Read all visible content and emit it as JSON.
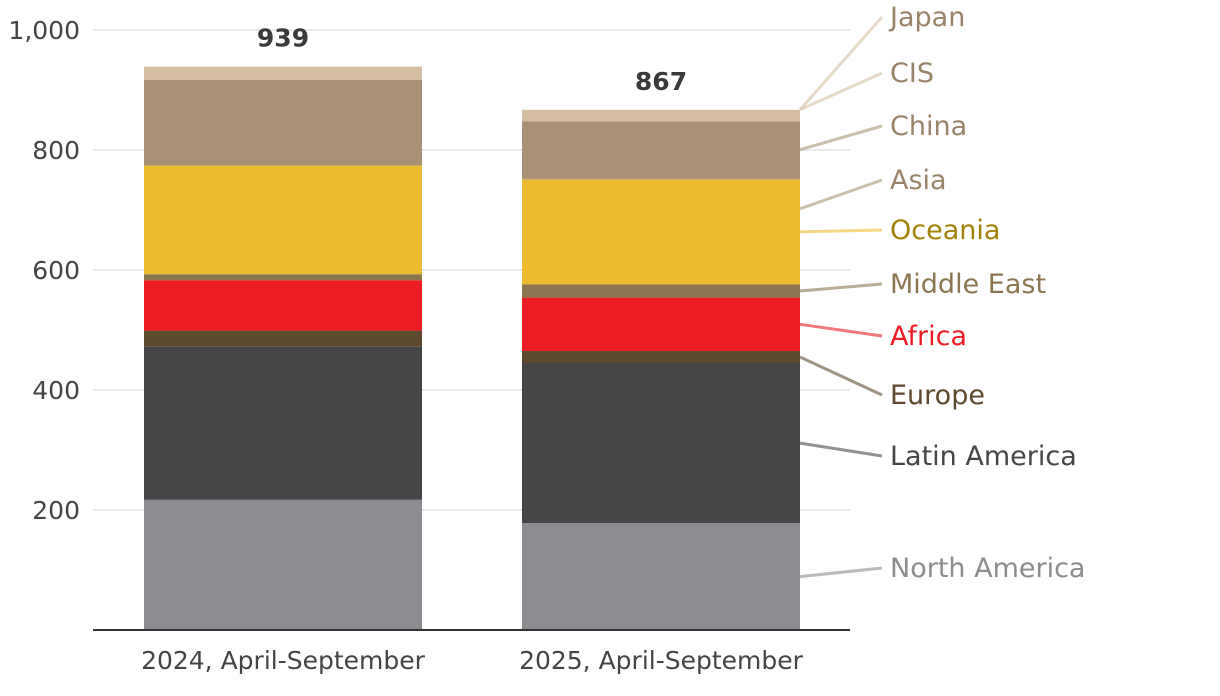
{
  "chart_data": {
    "type": "bar",
    "stacked": true,
    "categories": [
      "2024, April-September",
      "2025, April-September"
    ],
    "totals": [
      "939",
      "867"
    ],
    "ylim": [
      0,
      1000
    ],
    "yticks": [
      {
        "value": 200,
        "label": "200"
      },
      {
        "value": 400,
        "label": "400"
      },
      {
        "value": 600,
        "label": "600"
      },
      {
        "value": 800,
        "label": "800"
      },
      {
        "value": 1000,
        "label": "1,000"
      }
    ],
    "grid": true,
    "legend_placement": "right, direct labels",
    "series": [
      {
        "name": "North America",
        "color": "#8b8c90",
        "label_color": "#8b8c90",
        "values": [
          217,
          178
        ]
      },
      {
        "name": "Latin America",
        "color": "#464648",
        "label_color": "#464648",
        "values": [
          255,
          267
        ]
      },
      {
        "name": "Europe",
        "color": "#5e4a2e",
        "label_color": "#5e4a2e",
        "values": [
          27,
          20
        ]
      },
      {
        "name": "Africa",
        "color": "#ec1c24",
        "label_color": "#ec1c24",
        "values": [
          84,
          89
        ]
      },
      {
        "name": "Middle East",
        "color": "#8c7650",
        "label_color": "#8c7650",
        "values": [
          10,
          22
        ]
      },
      {
        "name": "Oceania",
        "color": "#edbb30",
        "label_color": "#a4810b",
        "values": [
          181,
          175
        ]
      },
      {
        "name": "Asia",
        "color": "#a89273",
        "label_color": "#9a8468",
        "values": [
          0,
          2
        ]
      },
      {
        "name": "China",
        "color": "#a89273",
        "label_color": "#9a8468",
        "values": [
          143,
          95
        ]
      },
      {
        "name": "CIS",
        "color": "#d4bfa1",
        "label_color": "#9a8468",
        "values": [
          22,
          19
        ]
      },
      {
        "name": "Japan",
        "color": "#d4bfa1",
        "label_color": "#9a8468",
        "values": [
          0,
          0
        ]
      }
    ]
  }
}
